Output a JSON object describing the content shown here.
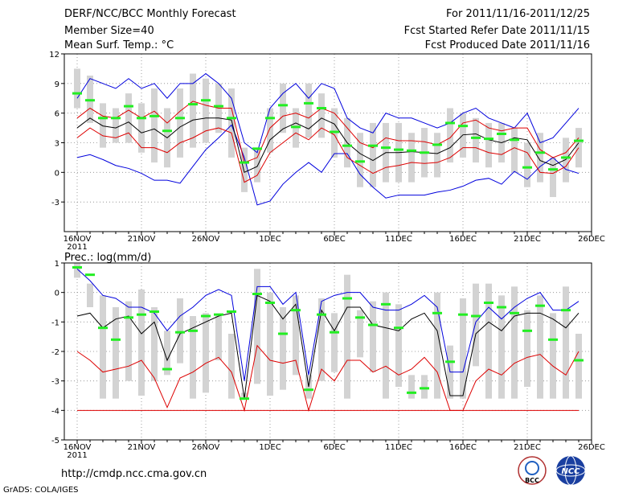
{
  "header": {
    "title": "DERF/NCC/BCC Monthly Forecast",
    "member_size": "Member Size=40",
    "variable": "Mean Surf. Temp.: °C",
    "period": "For 2011/11/16-2011/12/25",
    "fcst_started": "Fcst Started Refer Date 2011/11/15",
    "fcst_produced": "Fcst Produced Date 2011/11/16"
  },
  "footer": {
    "url": "http://cmdp.ncc.cma.gov.cn",
    "grads": "GrADS: COLA/IGES",
    "logo_bcc": "BCC",
    "logo_ncc": "NCC"
  },
  "colors": {
    "box": "#d3d3d3",
    "median": "#22ee22",
    "mean": "#000000",
    "inner": "#dd0000",
    "outer": "#0000dd",
    "grid": "#888888"
  },
  "chart_data": [
    {
      "type": "line",
      "title": "Mean Surf. Temp.: °C",
      "x_ticks": [
        "16NOV",
        "21NOV",
        "26NOV",
        "1DEC",
        "6DEC",
        "11DEC",
        "16DEC",
        "21DEC",
        "26DEC"
      ],
      "x_year_label": "2011",
      "ylim": [
        -6,
        12
      ],
      "y_ticks": [
        -3,
        0,
        3,
        6,
        9,
        12
      ],
      "days": 40,
      "series": [
        {
          "name": "ensemble max",
          "color": "outer",
          "values": [
            1.5,
            1.8,
            1.3,
            0.7,
            0.4,
            -0.1,
            -0.8,
            -0.8,
            -1.1,
            0.6,
            2.3,
            3.5,
            4.8,
            1.5,
            -3.3,
            -2.9,
            -1.2,
            0.0,
            1.0,
            0.0,
            1.9,
            1.9,
            -0.2,
            -1.5,
            -2.6,
            -2.3,
            -2.3,
            -2.3,
            -2.0,
            -1.8,
            -1.4,
            -0.8,
            -0.6,
            -1.2,
            0.1,
            -0.7,
            0.6,
            1.5,
            0.3,
            -0.1
          ]
        },
        {
          "name": "ensemble upper",
          "color": "outer",
          "values": [
            7.5,
            9.5,
            9.0,
            8.5,
            9.5,
            8.5,
            9.0,
            7.5,
            9.0,
            9.0,
            10.0,
            9.0,
            7.5,
            3.0,
            2.0,
            6.5,
            8.0,
            9.0,
            7.5,
            9.0,
            8.5,
            5.5,
            4.5,
            4.0,
            6.0,
            5.5,
            5.5,
            5.0,
            4.5,
            5.0,
            6.0,
            6.5,
            5.5,
            5.0,
            4.5,
            6.0,
            3.0,
            3.5,
            5.0,
            6.5
          ]
        },
        {
          "name": "ensemble lower",
          "color": "inner",
          "values": [
            3.5,
            4.5,
            3.7,
            3.5,
            4.0,
            2.5,
            2.5,
            2.0,
            3.0,
            3.5,
            4.2,
            4.5,
            4.0,
            -1.0,
            -0.3,
            2.0,
            3.0,
            4.0,
            3.3,
            4.5,
            3.8,
            1.5,
            0.7,
            -0.1,
            0.5,
            0.7,
            1.0,
            0.9,
            1.0,
            1.5,
            2.5,
            2.5,
            2.0,
            1.8,
            2.5,
            2.0,
            0.0,
            -0.1,
            0.6,
            2.5
          ]
        },
        {
          "name": "ensemble upper-mid",
          "color": "inner",
          "values": [
            5.5,
            6.5,
            5.7,
            5.5,
            6.3,
            5.5,
            6.2,
            5.0,
            6.2,
            7.2,
            6.8,
            6.5,
            6.5,
            1.0,
            1.5,
            4.5,
            5.7,
            6.0,
            5.5,
            6.5,
            6.0,
            4.5,
            3.0,
            2.5,
            3.5,
            3.2,
            3.2,
            3.1,
            2.8,
            3.5,
            5.0,
            5.3,
            4.5,
            4.2,
            4.5,
            4.5,
            2.3,
            1.5,
            2.0,
            3.5
          ]
        },
        {
          "name": "ensemble mean",
          "color": "mean",
          "values": [
            4.5,
            5.5,
            4.7,
            4.5,
            5.1,
            4.0,
            4.4,
            3.5,
            4.6,
            5.3,
            5.5,
            5.5,
            5.3,
            0.0,
            0.6,
            3.3,
            4.4,
            5.0,
            4.4,
            5.5,
            4.9,
            3.0,
            1.9,
            1.2,
            2.0,
            2.0,
            2.1,
            2.0,
            1.9,
            2.5,
            3.8,
            3.9,
            3.3,
            3.0,
            3.5,
            3.3,
            1.2,
            0.7,
            1.3,
            3.0
          ]
        },
        {
          "name": "ensemble median",
          "color": "median",
          "values": [
            8.0,
            7.3,
            5.5,
            5.5,
            6.7,
            5.5,
            5.7,
            4.2,
            5.5,
            6.9,
            7.3,
            6.7,
            5.5,
            1.0,
            2.4,
            5.5,
            6.8,
            4.6,
            7.0,
            6.5,
            4.1,
            2.7,
            1.1,
            2.7,
            2.5,
            2.3,
            2.2,
            2.0,
            2.8,
            5.0,
            4.7,
            3.5,
            3.4,
            3.9,
            3.3,
            0.5,
            2.0,
            0.3,
            1.5,
            3.2
          ]
        },
        {
          "name": "box top",
          "color": "box",
          "values": [
            10.5,
            9.8,
            7.0,
            6.5,
            8.0,
            7.0,
            8.5,
            6.5,
            8.5,
            10.0,
            9.5,
            9.0,
            8.5,
            2.5,
            2.5,
            6.5,
            9.0,
            6.5,
            9.0,
            8.0,
            6.5,
            5.5,
            4.0,
            5.0,
            5.0,
            5.0,
            4.0,
            4.5,
            4.0,
            6.5,
            6.0,
            5.5,
            5.0,
            5.0,
            4.5,
            3.0,
            4.0,
            1.5,
            3.5,
            4.5
          ]
        },
        {
          "name": "box bottom",
          "color": "box",
          "values": [
            6.5,
            5.0,
            2.5,
            3.0,
            3.0,
            2.0,
            1.0,
            0.5,
            1.5,
            2.5,
            3.0,
            4.0,
            1.5,
            -2.0,
            -1.0,
            2.0,
            4.0,
            2.5,
            3.5,
            3.5,
            1.5,
            0.5,
            -1.5,
            -1.5,
            -1.0,
            -1.0,
            -1.0,
            -0.5,
            -0.5,
            1.0,
            1.5,
            1.0,
            0.5,
            1.0,
            0.0,
            -1.5,
            -1.0,
            -2.5,
            -1.0,
            0.5
          ]
        }
      ]
    },
    {
      "type": "line",
      "title": "Prec.: log(mm/d)",
      "x_ticks": [
        "16NOV",
        "21NOV",
        "26NOV",
        "1DEC",
        "6DEC",
        "11DEC",
        "16DEC",
        "21DEC",
        "26DEC"
      ],
      "x_year_label": "2011",
      "ylim": [
        -5,
        1
      ],
      "y_ticks": [
        -5,
        -4,
        -3,
        -2,
        -1,
        0,
        1
      ],
      "days": 40,
      "series": [
        {
          "name": "ensemble max",
          "color": "outer",
          "values": [
            0.8,
            0.4,
            -0.1,
            -0.2,
            -0.5,
            -0.5,
            -0.7,
            -1.3,
            -0.8,
            -0.5,
            -0.1,
            0.1,
            -0.1,
            -3.0,
            0.2,
            0.2,
            -0.4,
            0.0,
            -2.8,
            -0.3,
            -0.1,
            0.0,
            0.0,
            -0.5,
            -0.6,
            -0.6,
            -0.4,
            -0.1,
            -0.5,
            -2.7,
            -2.7,
            -1.0,
            -0.5,
            -0.9,
            -0.5,
            -0.2,
            0.0,
            -0.6,
            -0.6,
            -0.3
          ]
        },
        {
          "name": "ensemble mean",
          "color": "mean",
          "values": [
            -0.8,
            -0.7,
            -1.2,
            -0.9,
            -0.8,
            -1.4,
            -1.0,
            -2.3,
            -1.4,
            -1.2,
            -1.0,
            -0.8,
            -0.7,
            -3.6,
            -0.1,
            -0.3,
            -0.9,
            -0.4,
            -3.2,
            -0.6,
            -1.3,
            -0.5,
            -0.5,
            -1.1,
            -1.2,
            -1.3,
            -0.9,
            -0.7,
            -1.3,
            -3.5,
            -3.5,
            -1.4,
            -1.0,
            -1.3,
            -0.8,
            -0.7,
            -0.7,
            -0.9,
            -1.2,
            -0.7
          ]
        },
        {
          "name": "ensemble low",
          "color": "inner",
          "values": [
            -2.0,
            -2.3,
            -2.7,
            -2.6,
            -2.5,
            -2.3,
            -2.9,
            -3.9,
            -2.9,
            -2.7,
            -2.4,
            -2.2,
            -2.7,
            -4.0,
            -1.8,
            -2.3,
            -2.4,
            -2.3,
            -4.0,
            -2.6,
            -3.0,
            -2.3,
            -2.3,
            -2.7,
            -2.5,
            -2.8,
            -2.6,
            -2.2,
            -2.7,
            -4.0,
            -4.0,
            -3.0,
            -2.6,
            -2.8,
            -2.4,
            -2.2,
            -2.1,
            -2.5,
            -2.8,
            -2.0
          ]
        },
        {
          "name": "ensemble median",
          "color": "median",
          "values": [
            0.85,
            0.6,
            -1.2,
            -1.6,
            -0.85,
            -0.75,
            -0.65,
            -2.6,
            -1.35,
            -1.3,
            -0.8,
            -0.75,
            -0.65,
            -3.6,
            -0.05,
            -0.35,
            -1.4,
            -0.6,
            -3.3,
            -0.75,
            -1.35,
            -0.2,
            -0.85,
            -1.1,
            -0.4,
            -1.2,
            -3.4,
            -3.25,
            -0.7,
            -2.35,
            -0.75,
            -0.8,
            -0.35,
            -0.5,
            -0.7,
            -1.3,
            -0.45,
            -1.6,
            -0.6,
            -2.3
          ]
        },
        {
          "name": "box top",
          "color": "box",
          "values": [
            1.0,
            0.3,
            -0.1,
            -0.5,
            -0.3,
            0.1,
            -0.5,
            -1.3,
            -0.2,
            -0.8,
            -0.7,
            -0.8,
            -1.4,
            -3.4,
            0.8,
            0.0,
            -0.5,
            -0.1,
            -2.8,
            -0.2,
            -0.7,
            0.6,
            -0.6,
            -0.3,
            0.0,
            -0.4,
            -2.8,
            -2.8,
            0.0,
            -1.8,
            -0.2,
            0.3,
            0.3,
            -0.1,
            0.2,
            -0.6,
            -0.1,
            -0.7,
            0.2,
            -1.4
          ]
        },
        {
          "name": "box bottom",
          "color": "box",
          "values": [
            0.5,
            -0.5,
            -3.6,
            -3.6,
            -3.0,
            -3.5,
            -3.0,
            -2.8,
            -2.4,
            -3.6,
            -3.4,
            -2.3,
            -3.6,
            -3.6,
            -3.1,
            -3.5,
            -3.3,
            -2.8,
            -3.6,
            -3.0,
            -2.7,
            -3.6,
            -2.2,
            -2.7,
            -3.6,
            -3.2,
            -3.6,
            -3.6,
            -3.6,
            -3.6,
            -3.6,
            -2.5,
            -3.6,
            -3.6,
            -3.6,
            -3.2,
            -3.6,
            -3.6,
            -3.6,
            -3.6
          ]
        },
        {
          "name": "floor",
          "color": "inner",
          "constant": -4
        }
      ]
    }
  ]
}
